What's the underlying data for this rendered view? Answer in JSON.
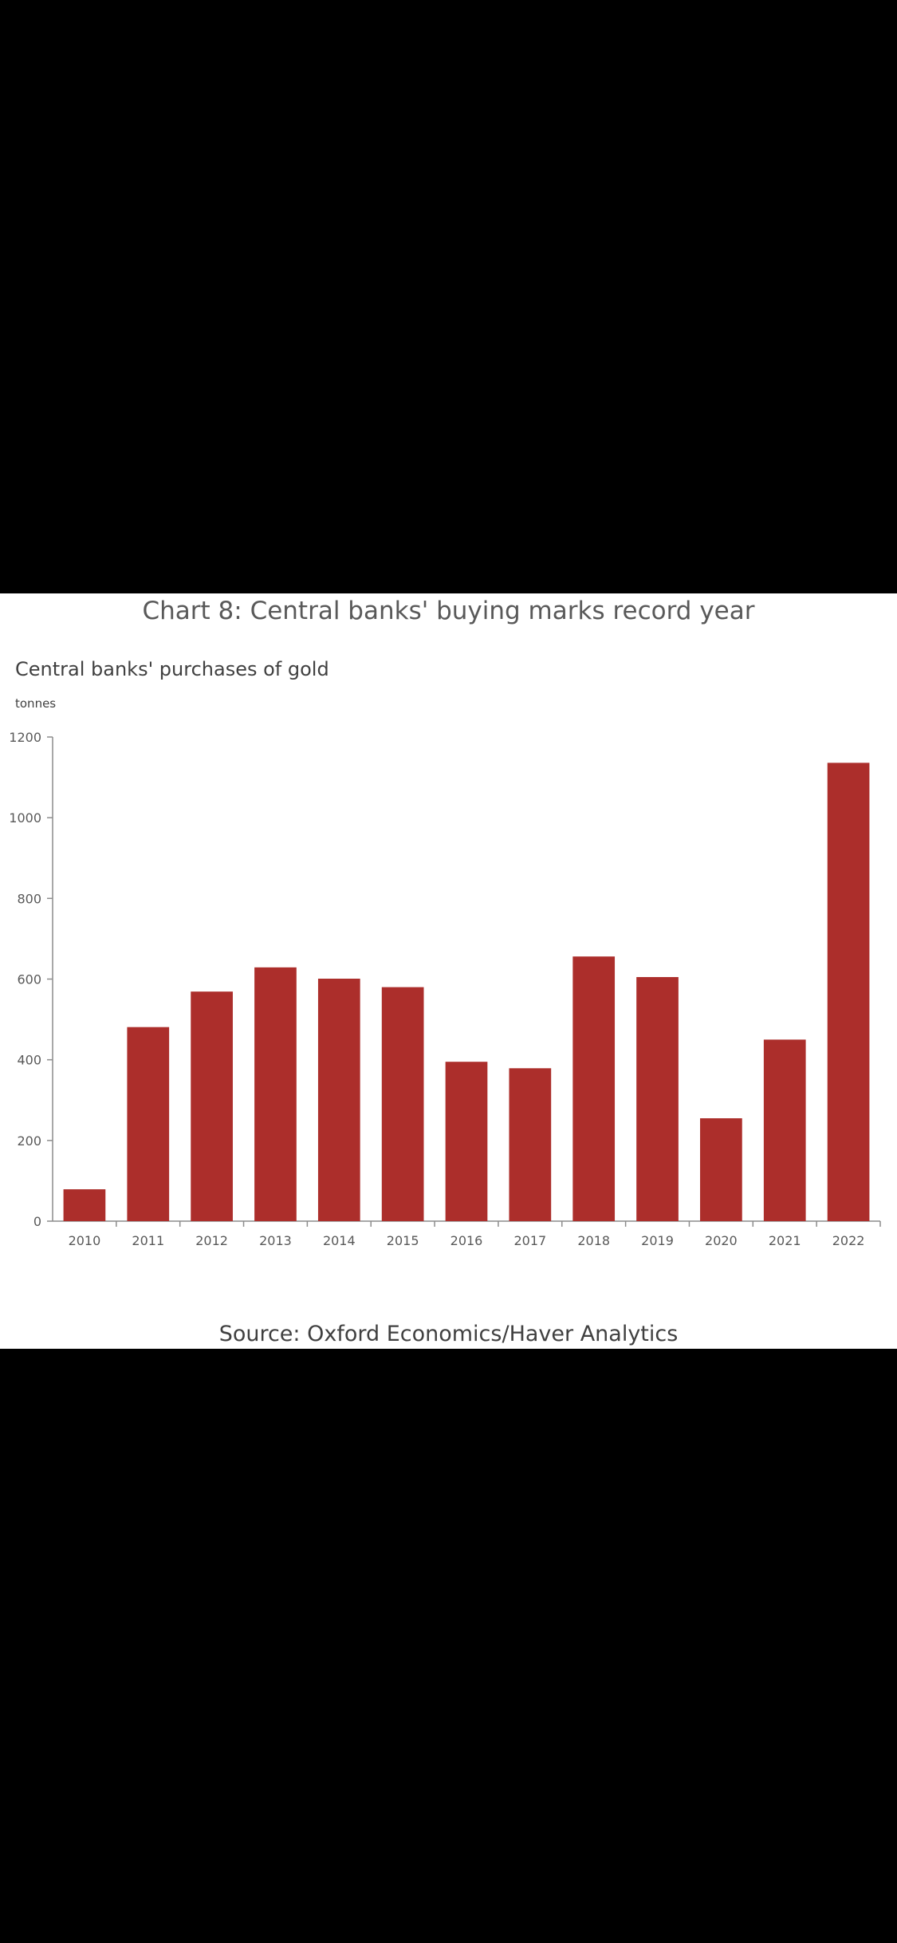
{
  "chart_data": {
    "type": "bar",
    "title": "Chart 8: Central banks' buying marks record year",
    "subtitle": "Central banks' purchases of gold",
    "ylabel": "tonnes",
    "xlabel": "",
    "categories": [
      "2010",
      "2011",
      "2012",
      "2013",
      "2014",
      "2015",
      "2016",
      "2017",
      "2018",
      "2019",
      "2020",
      "2021",
      "2022"
    ],
    "values": [
      79,
      481,
      569,
      629,
      601,
      580,
      395,
      379,
      656,
      605,
      255,
      450,
      1136
    ],
    "ylim": [
      0,
      1200
    ],
    "yticks": [
      0,
      200,
      400,
      600,
      800,
      1000,
      1200
    ],
    "bar_color": "#ac2e2b",
    "grid": false,
    "legend": "none",
    "source": "Source: Oxford Economics/Haver Analytics"
  }
}
